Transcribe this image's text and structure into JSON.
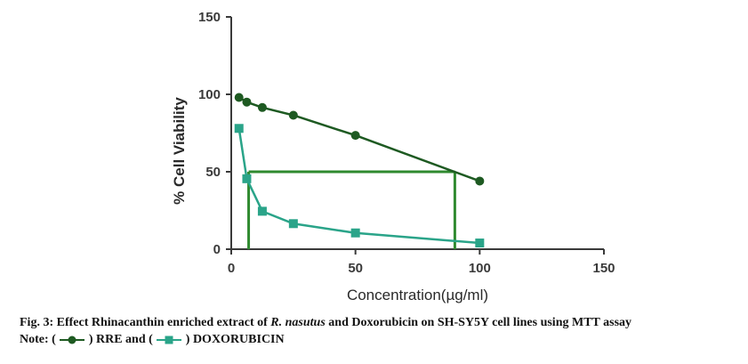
{
  "caption": {
    "line1_prefix": "Fig. 3: Effect Rhinacanthin enriched extract of ",
    "line1_italic": "R. nasutus",
    "line1_suffix": " and Doxorubicin on SH-SY5Y cell lines using MTT assay",
    "line2_start": "Note: ( ",
    "line2_mid1": " ) RRE and ( ",
    "line2_mid2": " ) DOXORUBICIN"
  },
  "colors": {
    "rre": "#1e5a22",
    "doxorubicin": "#2aa489",
    "axis": "#3a3a3a",
    "ic50_lines": "#2f8a2f"
  },
  "chart_data": {
    "type": "line",
    "xlabel": "Concentration(µg/ml)",
    "ylabel": "% Cell Viability",
    "xlim": [
      0,
      150
    ],
    "ylim": [
      0,
      150
    ],
    "xticks": [
      "0",
      "50",
      "100",
      "150"
    ],
    "yticks": [
      "0",
      "50",
      "100",
      "150"
    ],
    "series": [
      {
        "name": "RRE",
        "marker": "circle",
        "x": [
          3.125,
          6.25,
          12.5,
          25,
          50,
          100
        ],
        "y": [
          98,
          95,
          91.5,
          86.5,
          73.5,
          44
        ]
      },
      {
        "name": "DOXORUBICIN",
        "marker": "square",
        "x": [
          3.125,
          6.25,
          12.5,
          25,
          50,
          100
        ],
        "y": [
          78,
          45.5,
          24.5,
          16.5,
          10.5,
          4
        ]
      }
    ],
    "ic50_markers": [
      {
        "series": "RRE",
        "x": 90,
        "y": 50
      },
      {
        "series": "DOXORUBICIN",
        "x": 7,
        "y": 50
      }
    ]
  }
}
